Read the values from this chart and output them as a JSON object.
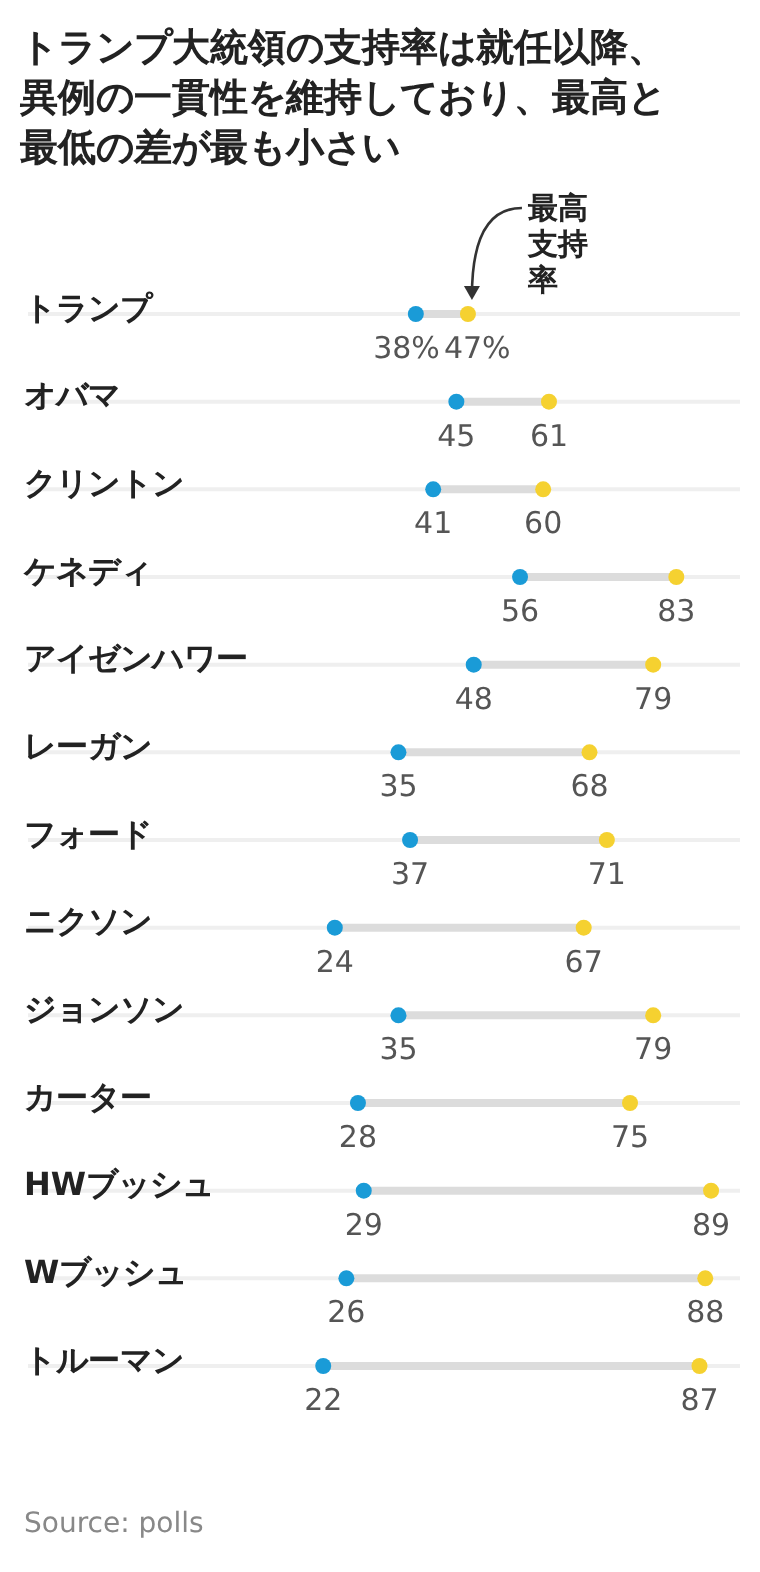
{
  "chart_data": {
    "type": "scatter",
    "orientation": "horizontal",
    "title": "トランプ大統領の支持率は就任以降、異例の一貫性を維持しており、最高と最低の差が最も小さい",
    "categories": [
      "トランプ",
      "オバマ",
      "クリントン",
      "ケネディ",
      "アイゼンハワー",
      "レーガン",
      "フォード",
      "ニクソン",
      "ジョンソン",
      "カーター",
      "HWブッシュ",
      "Wブッシュ",
      "トルーマン"
    ],
    "xlim": [
      -29,
      94
    ],
    "grid": "y",
    "marker": "circle",
    "series": [
      {
        "color": "#1a9bd7",
        "values": [
          38,
          45,
          41,
          56,
          48,
          35,
          37,
          24,
          35,
          28,
          29,
          26,
          22
        ],
        "value_labels": [
          "38%",
          "45",
          "41",
          "56",
          "48",
          "35",
          "37",
          "24",
          "35",
          "28",
          "29",
          "26",
          "22"
        ]
      },
      {
        "color": "#f5d130",
        "values": [
          47,
          61,
          60,
          83,
          79,
          68,
          71,
          67,
          79,
          75,
          89,
          88,
          87
        ],
        "value_labels": [
          "47%",
          "61",
          "60",
          "83",
          "79",
          "68",
          "71",
          "67",
          "79",
          "75",
          "89",
          "88",
          "87"
        ]
      }
    ],
    "annotations": [
      {
        "text": "最高支持率",
        "x": 47,
        "y": "トランプ"
      },
      "Source: polls"
    ]
  }
}
